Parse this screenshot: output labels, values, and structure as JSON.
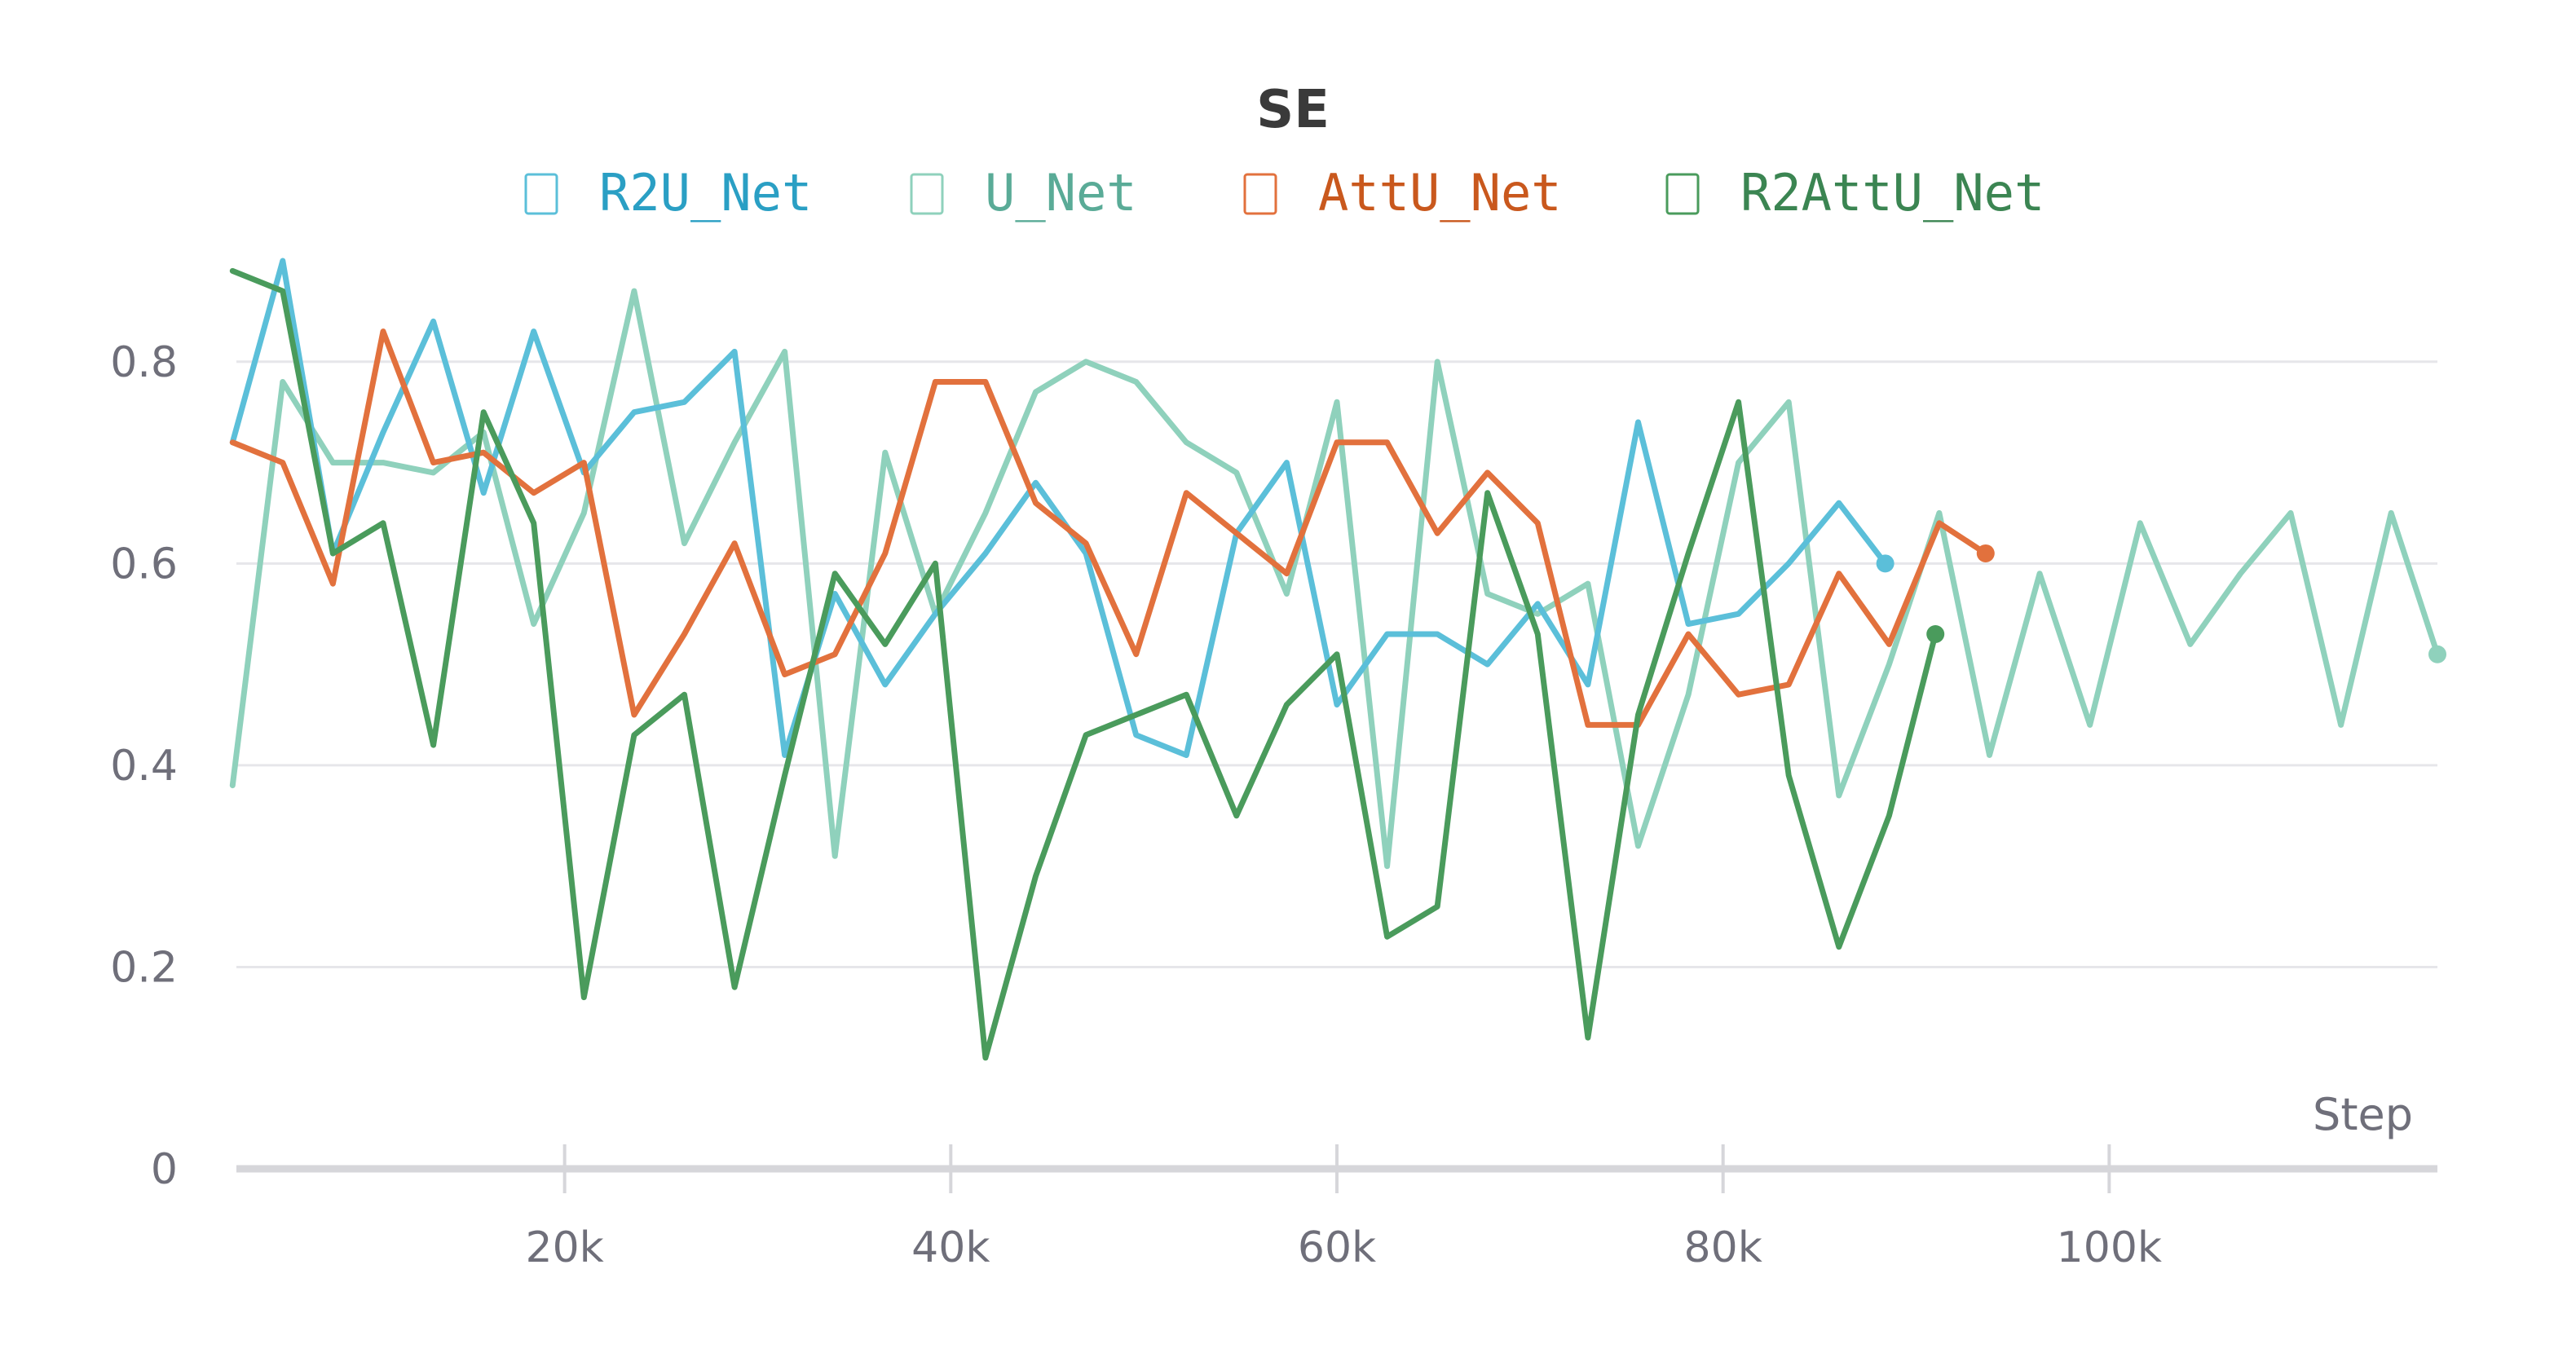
{
  "chart_data": {
    "type": "line",
    "title": "SE",
    "xlabel": "Step",
    "ylabel": "",
    "xlim": [
      3000,
      117000
    ],
    "ylim": [
      0,
      0.9
    ],
    "x_ticks": [
      20000,
      40000,
      60000,
      80000,
      100000
    ],
    "x_tick_labels": [
      "20k",
      "40k",
      "60k",
      "80k",
      "100k"
    ],
    "y_ticks": [
      0,
      0.2,
      0.4,
      0.6,
      0.8
    ],
    "y_tick_labels": [
      "0",
      "0.2",
      "0.4",
      "0.6",
      "0.8"
    ],
    "grid": true,
    "legend_position": "top",
    "series": [
      {
        "name": "R2U_Net",
        "color": "#5bbfd9",
        "text_color": "#2a9fc4",
        "x": [
          2800,
          5400,
          8000,
          10600,
          13200,
          15800,
          18400,
          21000,
          23600,
          26200,
          28800,
          31400,
          34000,
          36600,
          39200,
          41800,
          44400,
          47000,
          49600,
          52200,
          54800,
          57400,
          60000,
          62600,
          65200,
          67800,
          70400,
          73000,
          75600,
          78200,
          80800,
          83400,
          86000,
          88400
        ],
        "y": [
          0.72,
          0.9,
          0.61,
          0.73,
          0.84,
          0.67,
          0.83,
          0.69,
          0.75,
          0.76,
          0.81,
          0.41,
          0.57,
          0.48,
          0.55,
          0.61,
          0.68,
          0.61,
          0.43,
          0.41,
          0.63,
          0.7,
          0.46,
          0.53,
          0.53,
          0.5,
          0.56,
          0.48,
          0.74,
          0.54,
          0.55,
          0.6,
          0.66,
          0.6
        ]
      },
      {
        "name": "U_Net",
        "color": "#8fd1bc",
        "text_color": "#5aab97",
        "x": [
          2800,
          5400,
          8000,
          10600,
          13200,
          15800,
          18400,
          21000,
          23600,
          26200,
          28800,
          31400,
          34000,
          36600,
          39200,
          41800,
          44400,
          47000,
          49600,
          52200,
          54800,
          57400,
          60000,
          62600,
          65200,
          67800,
          70400,
          73000,
          75600,
          78200,
          80800,
          83400,
          86000,
          88600,
          91200,
          93800,
          96400,
          99000,
          101600,
          104200,
          106800,
          109400,
          112000,
          114600,
          117000
        ],
        "y": [
          0.38,
          0.78,
          0.7,
          0.7,
          0.69,
          0.73,
          0.54,
          0.65,
          0.87,
          0.62,
          0.72,
          0.81,
          0.31,
          0.71,
          0.55,
          0.65,
          0.77,
          0.8,
          0.78,
          0.72,
          0.69,
          0.57,
          0.76,
          0.3,
          0.8,
          0.57,
          0.55,
          0.58,
          0.32,
          0.47,
          0.7,
          0.76,
          0.37,
          0.5,
          0.65,
          0.41,
          0.59,
          0.44,
          0.64,
          0.52,
          0.59,
          0.65,
          0.44,
          0.65,
          0.51
        ]
      },
      {
        "name": "AttU_Net",
        "color": "#e2713d",
        "text_color": "#c9581d",
        "x": [
          2800,
          5400,
          8000,
          10600,
          13200,
          15800,
          18400,
          21000,
          23600,
          26200,
          28800,
          31400,
          34000,
          36600,
          39200,
          41800,
          44400,
          47000,
          49600,
          52200,
          54800,
          57400,
          60000,
          62600,
          65200,
          67800,
          70400,
          73000,
          75600,
          78200,
          80800,
          83400,
          86000,
          88600,
          91200,
          93600
        ],
        "y": [
          0.72,
          0.7,
          0.58,
          0.83,
          0.7,
          0.71,
          0.67,
          0.7,
          0.45,
          0.53,
          0.62,
          0.49,
          0.51,
          0.61,
          0.78,
          0.78,
          0.66,
          0.62,
          0.51,
          0.67,
          0.63,
          0.59,
          0.72,
          0.72,
          0.63,
          0.69,
          0.64,
          0.44,
          0.44,
          0.53,
          0.47,
          0.48,
          0.59,
          0.52,
          0.64,
          0.61
        ]
      },
      {
        "name": "R2AttU_Net",
        "color": "#4a9b5c",
        "text_color": "#3b8552",
        "x": [
          2800,
          5400,
          8000,
          10600,
          13200,
          15800,
          18400,
          21000,
          23600,
          26200,
          28800,
          31400,
          34000,
          36600,
          39200,
          41800,
          44400,
          47000,
          49600,
          52200,
          54800,
          57400,
          60000,
          62600,
          65200,
          67800,
          70400,
          73000,
          75600,
          78200,
          80800,
          83400,
          86000,
          88600,
          91000
        ],
        "y": [
          0.89,
          0.87,
          0.61,
          0.64,
          0.42,
          0.75,
          0.64,
          0.17,
          0.43,
          0.47,
          0.18,
          0.39,
          0.59,
          0.52,
          0.6,
          0.11,
          0.29,
          0.43,
          0.45,
          0.47,
          0.35,
          0.46,
          0.51,
          0.23,
          0.26,
          0.67,
          0.53,
          0.13,
          0.45,
          0.61,
          0.76,
          0.39,
          0.22,
          0.35,
          0.53
        ]
      }
    ]
  }
}
